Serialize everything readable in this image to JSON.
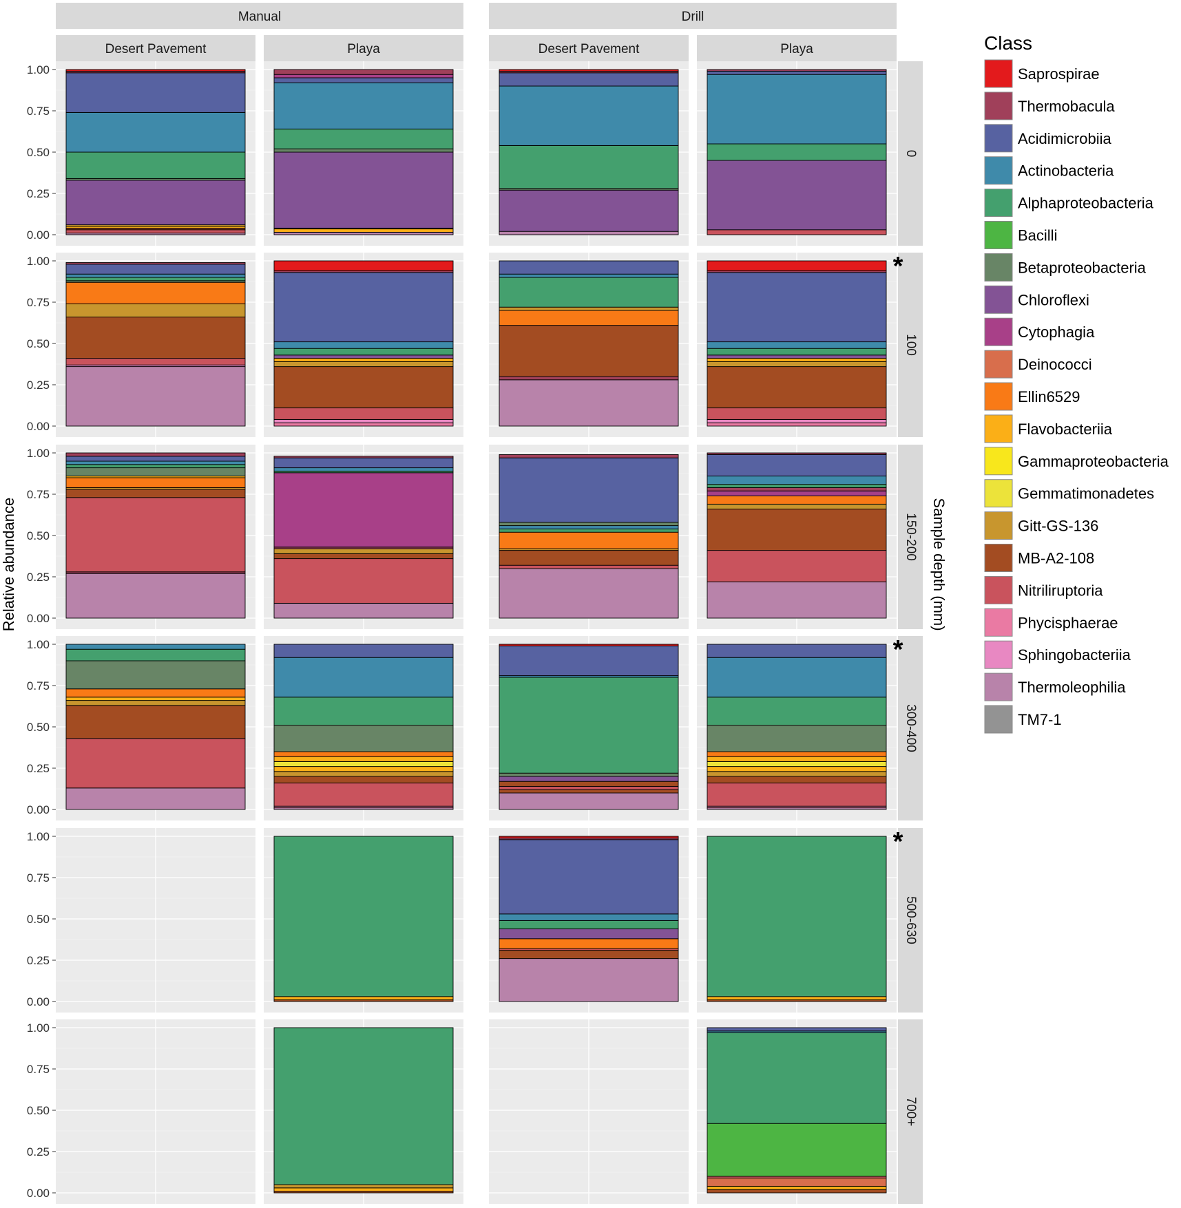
{
  "chart_data": {
    "type": "stacked-bar-facet-grid",
    "ylabel": "Relative abundance",
    "right_axis_label": "Sample depth (mm)",
    "ylim": [
      0,
      1
    ],
    "y_ticks": [
      "1.00",
      "0.75",
      "0.50",
      "0.25",
      "0.00"
    ],
    "methods": [
      "Manual",
      "Drill"
    ],
    "sites": [
      "Desert Pavement",
      "Playa"
    ],
    "depths": [
      "0",
      "100",
      "150-200",
      "300-400",
      "500-630",
      "700+"
    ],
    "legend": {
      "title": "Class",
      "entries": [
        {
          "name": "Saprospirae",
          "color": "#e31a1c"
        },
        {
          "name": "Thermobacula",
          "color": "#a0405a"
        },
        {
          "name": "Acidimicrobiia",
          "color": "#5762a1"
        },
        {
          "name": "Actinobacteria",
          "color": "#3f8aaa"
        },
        {
          "name": "Alphaproteobacteria",
          "color": "#44a06e"
        },
        {
          "name": "Bacilli",
          "color": "#4db543"
        },
        {
          "name": "Betaproteobacteria",
          "color": "#688566"
        },
        {
          "name": "Chloroflexi",
          "color": "#835395"
        },
        {
          "name": "Cytophagia",
          "color": "#a84088"
        },
        {
          "name": "Deinococci",
          "color": "#d86e4c"
        },
        {
          "name": "Ellin6529",
          "color": "#f97a16"
        },
        {
          "name": "Flavobacteriia",
          "color": "#fbaf17"
        },
        {
          "name": "Gammaproteobacteria",
          "color": "#f8e71c"
        },
        {
          "name": "Gemmatimonadetes",
          "color": "#ece33a"
        },
        {
          "name": "Gitt-GS-136",
          "color": "#c8962e"
        },
        {
          "name": "MB-A2-108",
          "color": "#a34c22"
        },
        {
          "name": "Nitriliruptoria",
          "color": "#c9535d"
        },
        {
          "name": "Phycisphaerae",
          "color": "#ea7aa3"
        },
        {
          "name": "Sphingobacteriia",
          "color": "#e888c2"
        },
        {
          "name": "Thermoleophilia",
          "color": "#b883aa"
        },
        {
          "name": "TM7-1",
          "color": "#939393"
        }
      ]
    },
    "significance_marker": "*",
    "panels": [
      {
        "method": "Manual",
        "site": "Desert Pavement",
        "depth": "0",
        "segments": [
          [
            "Thermoleophilia",
            0.01
          ],
          [
            "Nitriliruptoria",
            0.02
          ],
          [
            "MB-A2-108",
            0.01
          ],
          [
            "Flavobacteriia",
            0.01
          ],
          [
            "Gitt-GS-136",
            0.01
          ],
          [
            "Chloroflexi",
            0.27
          ],
          [
            "Betaproteobacteria",
            0.01
          ],
          [
            "Alphaproteobacteria",
            0.16
          ],
          [
            "Actinobacteria",
            0.24
          ],
          [
            "Acidimicrobiia",
            0.24
          ],
          [
            "Thermobacula",
            0.01
          ],
          [
            "Saprospirae",
            0.01
          ]
        ]
      },
      {
        "method": "Manual",
        "site": "Playa",
        "depth": "0",
        "segments": [
          [
            "Thermoleophilia",
            0.015
          ],
          [
            "Flavobacteriia",
            0.02
          ],
          [
            "MB-A2-108",
            0.005
          ],
          [
            "Chloroflexi",
            0.46
          ],
          [
            "Betaproteobacteria",
            0.02
          ],
          [
            "Alphaproteobacteria",
            0.12
          ],
          [
            "Actinobacteria",
            0.28
          ],
          [
            "Acidimicrobiia",
            0.03
          ],
          [
            "Cytophagia",
            0.02
          ],
          [
            "Thermobacula",
            0.03
          ]
        ]
      },
      {
        "method": "Drill",
        "site": "Desert Pavement",
        "depth": "0",
        "segments": [
          [
            "Thermoleophilia",
            0.02
          ],
          [
            "Chloroflexi",
            0.25
          ],
          [
            "Betaproteobacteria",
            0.01
          ],
          [
            "Alphaproteobacteria",
            0.26
          ],
          [
            "Actinobacteria",
            0.36
          ],
          [
            "Acidimicrobiia",
            0.08
          ],
          [
            "Thermobacula",
            0.01
          ],
          [
            "Saprospirae",
            0.01
          ]
        ]
      },
      {
        "method": "Drill",
        "site": "Playa",
        "depth": "0",
        "segments": [
          [
            "Nitriliruptoria",
            0.03
          ],
          [
            "Chloroflexi",
            0.42
          ],
          [
            "Alphaproteobacteria",
            0.1
          ],
          [
            "Actinobacteria",
            0.42
          ],
          [
            "Acidimicrobiia",
            0.02
          ],
          [
            "Thermobacula",
            0.01
          ]
        ]
      },
      {
        "method": "Manual",
        "site": "Desert Pavement",
        "depth": "100",
        "segments": [
          [
            "Thermoleophilia",
            0.36
          ],
          [
            "Sphingobacteriia",
            0.01
          ],
          [
            "Nitriliruptoria",
            0.04
          ],
          [
            "MB-A2-108",
            0.25
          ],
          [
            "Gitt-GS-136",
            0.08
          ],
          [
            "Ellin6529",
            0.13
          ],
          [
            "Betaproteobacteria",
            0.01
          ],
          [
            "Alphaproteobacteria",
            0.02
          ],
          [
            "Actinobacteria",
            0.02
          ],
          [
            "Acidimicrobiia",
            0.06
          ],
          [
            "Thermobacula",
            0.01
          ]
        ]
      },
      {
        "method": "Manual",
        "site": "Playa",
        "depth": "100",
        "segments": [
          [
            "Phycisphaerae",
            0.02
          ],
          [
            "Sphingobacteriia",
            0.02
          ],
          [
            "Nitriliruptoria",
            0.07
          ],
          [
            "MB-A2-108",
            0.25
          ],
          [
            "Gitt-GS-136",
            0.03
          ],
          [
            "Flavobacteriia",
            0.02
          ],
          [
            "Chloroflexi",
            0.02
          ],
          [
            "Alphaproteobacteria",
            0.04
          ],
          [
            "Actinobacteria",
            0.04
          ],
          [
            "Acidimicrobiia",
            0.42
          ],
          [
            "Thermobacula",
            0.01
          ],
          [
            "Saprospirae",
            0.06
          ]
        ]
      },
      {
        "method": "Drill",
        "site": "Desert Pavement",
        "depth": "100",
        "segments": [
          [
            "Thermoleophilia",
            0.28
          ],
          [
            "Thermobacula",
            0.02
          ],
          [
            "MB-A2-108",
            0.31
          ],
          [
            "Ellin6529",
            0.09
          ],
          [
            "Gitt-GS-136",
            0.02
          ],
          [
            "Alphaproteobacteria",
            0.18
          ],
          [
            "Actinobacteria",
            0.02
          ],
          [
            "Acidimicrobiia",
            0.08
          ]
        ]
      },
      {
        "method": "Drill",
        "site": "Playa",
        "depth": "100",
        "segments": [
          [
            "Phycisphaerae",
            0.02
          ],
          [
            "Sphingobacteriia",
            0.02
          ],
          [
            "Nitriliruptoria",
            0.07
          ],
          [
            "MB-A2-108",
            0.25
          ],
          [
            "Gitt-GS-136",
            0.03
          ],
          [
            "Flavobacteriia",
            0.02
          ],
          [
            "Chloroflexi",
            0.02
          ],
          [
            "Alphaproteobacteria",
            0.04
          ],
          [
            "Actinobacteria",
            0.04
          ],
          [
            "Acidimicrobiia",
            0.42
          ],
          [
            "Thermobacula",
            0.01
          ],
          [
            "Saprospirae",
            0.06
          ]
        ],
        "marked": true
      },
      {
        "method": "Manual",
        "site": "Desert Pavement",
        "depth": "150-200",
        "segments": [
          [
            "Thermoleophilia",
            0.27
          ],
          [
            "Thermobacula",
            0.01
          ],
          [
            "Nitriliruptoria",
            0.45
          ],
          [
            "MB-A2-108",
            0.05
          ],
          [
            "Gitt-GS-136",
            0.01
          ],
          [
            "Ellin6529",
            0.06
          ],
          [
            "Flavobacteriia",
            0.01
          ],
          [
            "Betaproteobacteria",
            0.05
          ],
          [
            "Alphaproteobacteria",
            0.02
          ],
          [
            "Actinobacteria",
            0.02
          ],
          [
            "Acidimicrobiia",
            0.03
          ],
          [
            "Thermobacula",
            0.02
          ]
        ]
      },
      {
        "method": "Manual",
        "site": "Playa",
        "depth": "150-200",
        "segments": [
          [
            "Thermoleophilia",
            0.09
          ],
          [
            "Nitriliruptoria",
            0.27
          ],
          [
            "MB-A2-108",
            0.03
          ],
          [
            "Gitt-GS-136",
            0.03
          ],
          [
            "Thermobacula",
            0.01
          ],
          [
            "Cytophagia",
            0.45
          ],
          [
            "Alphaproteobacteria",
            0.01
          ],
          [
            "Actinobacteria",
            0.02
          ],
          [
            "Acidimicrobiia",
            0.06
          ],
          [
            "Thermobacula",
            0.01
          ]
        ]
      },
      {
        "method": "Drill",
        "site": "Desert Pavement",
        "depth": "150-200",
        "segments": [
          [
            "Thermoleophilia",
            0.3
          ],
          [
            "Nitriliruptoria",
            0.02
          ],
          [
            "MB-A2-108",
            0.09
          ],
          [
            "Gitt-GS-136",
            0.01
          ],
          [
            "Ellin6529",
            0.1
          ],
          [
            "Alphaproteobacteria",
            0.02
          ],
          [
            "Actinobacteria",
            0.02
          ],
          [
            "Betaproteobacteria",
            0.02
          ],
          [
            "Acidimicrobiia",
            0.39
          ],
          [
            "Thermobacula",
            0.02
          ]
        ]
      },
      {
        "method": "Drill",
        "site": "Playa",
        "depth": "150-200",
        "segments": [
          [
            "Thermoleophilia",
            0.22
          ],
          [
            "Nitriliruptoria",
            0.19
          ],
          [
            "MB-A2-108",
            0.25
          ],
          [
            "Gitt-GS-136",
            0.03
          ],
          [
            "Ellin6529",
            0.05
          ],
          [
            "Cytophagia",
            0.03
          ],
          [
            "Thermobacula",
            0.02
          ],
          [
            "Alphaproteobacteria",
            0.02
          ],
          [
            "Actinobacteria",
            0.05
          ],
          [
            "Acidimicrobiia",
            0.13
          ],
          [
            "Thermobacula",
            0.01
          ]
        ]
      },
      {
        "method": "Manual",
        "site": "Desert Pavement",
        "depth": "300-400",
        "segments": [
          [
            "Thermoleophilia",
            0.13
          ],
          [
            "Nitriliruptoria",
            0.3
          ],
          [
            "MB-A2-108",
            0.2
          ],
          [
            "Gitt-GS-136",
            0.03
          ],
          [
            "Flavobacteriia",
            0.02
          ],
          [
            "Ellin6529",
            0.05
          ],
          [
            "Betaproteobacteria",
            0.17
          ],
          [
            "Alphaproteobacteria",
            0.07
          ],
          [
            "Actinobacteria",
            0.03
          ]
        ]
      },
      {
        "method": "Manual",
        "site": "Playa",
        "depth": "300-400",
        "segments": [
          [
            "Thermoleophilia",
            0.01
          ],
          [
            "Phycisphaerae",
            0.01
          ],
          [
            "Nitriliruptoria",
            0.14
          ],
          [
            "MB-A2-108",
            0.04
          ],
          [
            "Gitt-GS-136",
            0.03
          ],
          [
            "Flavobacteriia",
            0.03
          ],
          [
            "Gemmatimonadetes",
            0.03
          ],
          [
            "Flavobacteriia",
            0.03
          ],
          [
            "Ellin6529",
            0.03
          ],
          [
            "Betaproteobacteria",
            0.16
          ],
          [
            "Alphaproteobacteria",
            0.17
          ],
          [
            "Actinobacteria",
            0.24
          ],
          [
            "Acidimicrobiia",
            0.08
          ]
        ]
      },
      {
        "method": "Drill",
        "site": "Desert Pavement",
        "depth": "300-400",
        "segments": [
          [
            "Thermoleophilia",
            0.1
          ],
          [
            "MB-A2-108",
            0.02
          ],
          [
            "Nitriliruptoria",
            0.02
          ],
          [
            "MB-A2-108",
            0.03
          ],
          [
            "Chloroflexi",
            0.03
          ],
          [
            "Betaproteobacteria",
            0.02
          ],
          [
            "Alphaproteobacteria",
            0.58
          ],
          [
            "Actinobacteria",
            0.01
          ],
          [
            "Acidimicrobiia",
            0.18
          ],
          [
            "Saprospirae",
            0.01
          ]
        ]
      },
      {
        "method": "Drill",
        "site": "Playa",
        "depth": "300-400",
        "segments": [
          [
            "Thermoleophilia",
            0.01
          ],
          [
            "Phycisphaerae",
            0.01
          ],
          [
            "Nitriliruptoria",
            0.14
          ],
          [
            "MB-A2-108",
            0.04
          ],
          [
            "Gitt-GS-136",
            0.03
          ],
          [
            "Flavobacteriia",
            0.03
          ],
          [
            "Gemmatimonadetes",
            0.03
          ],
          [
            "Flavobacteriia",
            0.03
          ],
          [
            "Ellin6529",
            0.03
          ],
          [
            "Betaproteobacteria",
            0.16
          ],
          [
            "Alphaproteobacteria",
            0.17
          ],
          [
            "Actinobacteria",
            0.24
          ],
          [
            "Acidimicrobiia",
            0.08
          ]
        ],
        "marked": true
      },
      {
        "method": "Manual",
        "site": "Desert Pavement",
        "depth": "500-630",
        "segments": []
      },
      {
        "method": "Manual",
        "site": "Playa",
        "depth": "500-630",
        "segments": [
          [
            "MB-A2-108",
            0.01
          ],
          [
            "Flavobacteriia",
            0.02
          ],
          [
            "Alphaproteobacteria",
            0.97
          ]
        ]
      },
      {
        "method": "Drill",
        "site": "Desert Pavement",
        "depth": "500-630",
        "segments": [
          [
            "Thermoleophilia",
            0.26
          ],
          [
            "MB-A2-108",
            0.05
          ],
          [
            "Nitriliruptoria",
            0.01
          ],
          [
            "Ellin6529",
            0.06
          ],
          [
            "Chloroflexi",
            0.06
          ],
          [
            "Alphaproteobacteria",
            0.05
          ],
          [
            "Actinobacteria",
            0.04
          ],
          [
            "Acidimicrobiia",
            0.45
          ],
          [
            "Thermobacula",
            0.01
          ],
          [
            "Saprospirae",
            0.01
          ]
        ]
      },
      {
        "method": "Drill",
        "site": "Playa",
        "depth": "500-630",
        "segments": [
          [
            "MB-A2-108",
            0.01
          ],
          [
            "Flavobacteriia",
            0.02
          ],
          [
            "Alphaproteobacteria",
            0.97
          ]
        ],
        "marked": true
      },
      {
        "method": "Manual",
        "site": "Desert Pavement",
        "depth": "700+",
        "segments": []
      },
      {
        "method": "Manual",
        "site": "Playa",
        "depth": "700+",
        "segments": [
          [
            "MB-A2-108",
            0.01
          ],
          [
            "Flavobacteriia",
            0.02
          ],
          [
            "Gitt-GS-136",
            0.02
          ],
          [
            "Alphaproteobacteria",
            0.95
          ]
        ]
      },
      {
        "method": "Drill",
        "site": "Desert Pavement",
        "depth": "700+",
        "segments": []
      },
      {
        "method": "Drill",
        "site": "Playa",
        "depth": "700+",
        "segments": [
          [
            "MB-A2-108",
            0.02
          ],
          [
            "Flavobacteriia",
            0.02
          ],
          [
            "Deinococci",
            0.05
          ],
          [
            "Nitriliruptoria",
            0.01
          ],
          [
            "Bacilli",
            0.32
          ],
          [
            "Alphaproteobacteria",
            0.55
          ],
          [
            "Actinobacteria",
            0.01
          ],
          [
            "Acidimicrobiia",
            0.02
          ]
        ]
      }
    ]
  }
}
